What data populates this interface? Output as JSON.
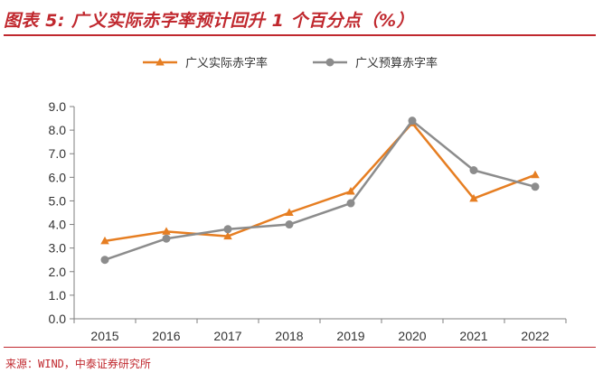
{
  "header": {
    "title": "图表 5:  广义实际赤字率预计回升 1 个百分点（%）"
  },
  "footer": {
    "source": "来源：WIND，中泰证券研究所"
  },
  "colors": {
    "accent": "#c0282e",
    "series1": "#e67e22",
    "series2": "#8c8c8c"
  },
  "chart_data": {
    "type": "line",
    "title": "广义实际赤字率预计回升 1 个百分点（%）",
    "xlabel": "",
    "ylabel": "",
    "categories": [
      "2015",
      "2016",
      "2017",
      "2018",
      "2019",
      "2020",
      "2021",
      "2022"
    ],
    "ylim": [
      0,
      9
    ],
    "yticks": [
      "0.0",
      "1.0",
      "2.0",
      "3.0",
      "4.0",
      "5.0",
      "6.0",
      "7.0",
      "8.0",
      "9.0"
    ],
    "grid": false,
    "legend_position": "top-center",
    "series": [
      {
        "name": "广义实际赤字率",
        "marker": "triangle",
        "values": [
          3.3,
          3.7,
          3.5,
          4.5,
          5.4,
          8.3,
          5.1,
          6.1
        ]
      },
      {
        "name": "广义预算赤字率",
        "marker": "circle",
        "values": [
          2.5,
          3.4,
          3.8,
          4.0,
          4.9,
          8.4,
          6.3,
          5.6
        ]
      }
    ]
  }
}
